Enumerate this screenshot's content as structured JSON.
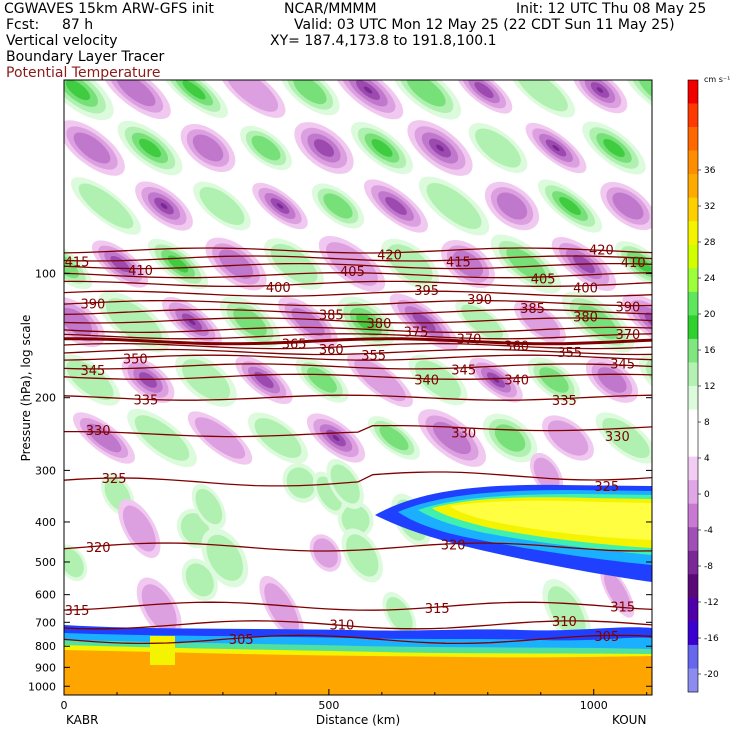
{
  "header": {
    "model": "CGWAVES 15km ARW-GFS init",
    "forecast_label": "Fcst:",
    "forecast_hours": "87 h",
    "org": "NCAR/MMMM",
    "init": "Init: 12 UTC Thu 08 May 25",
    "valid": "Valid: 03 UTC Mon 12 May 25 (22 CDT Sun 11 May 25)",
    "xy": "XY= 187.4,173.8 to 191.8,100.1",
    "field1": "Vertical velocity",
    "field2": "Boundary Layer Tracer",
    "field3": "Potential Temperature",
    "field3_color": "#8b1a1a"
  },
  "chart_data": {
    "type": "heatmap",
    "ylabel": "Pressure (hPa), log scale",
    "xlabel": "Distance (km)",
    "x_left_label": "KABR",
    "x_right_label": "KOUN",
    "xlim": [
      0,
      1110
    ],
    "ylim": [
      1050,
      34
    ],
    "yscale": "log",
    "x_ticks": [
      "0",
      "500",
      "1000"
    ],
    "x_tick_values": [
      0,
      500,
      1000
    ],
    "y_ticks": [
      "100",
      "200",
      "300",
      "400",
      "500",
      "600",
      "700",
      "800",
      "900",
      "1000"
    ],
    "y_tick_values": [
      100,
      200,
      300,
      400,
      500,
      600,
      700,
      800,
      900,
      1000
    ],
    "colorbar": {
      "units": "cm s⁻¹",
      "tick_labels": [
        "36",
        "32",
        "28",
        "24",
        "20",
        "16",
        "12",
        "8",
        "4",
        "0",
        "-4",
        "-8",
        "-12",
        "-16",
        "-20"
      ],
      "colors": [
        "#f20000",
        "#ff3a00",
        "#ff6800",
        "#ff8d00",
        "#ffaa00",
        "#ffd000",
        "#f4f400",
        "#d2ff00",
        "#9cff3a",
        "#5fe65f",
        "#2ed12e",
        "#80e680",
        "#b4f2b4",
        "#dcfadc",
        "#ffffff",
        "#ffffff",
        "#f2ccf2",
        "#e0a6e6",
        "#c87ad2",
        "#a050b4",
        "#7a2896",
        "#5a0a78",
        "#5000aa",
        "#3a00d2",
        "#6666ee",
        "#8c8cf0"
      ]
    },
    "theta_series": {
      "color": "#800000",
      "contours": [
        {
          "label": "305",
          "p": 770,
          "label_x_km": [
            310,
            1000
          ]
        },
        {
          "label": "310",
          "p": 710,
          "label_x_km": [
            500,
            920
          ]
        },
        {
          "label": "315",
          "p": 640,
          "label_x_km": [
            0,
            680,
            1030
          ]
        },
        {
          "label": "320",
          "p": 460,
          "label_x_km": [
            40,
            710
          ]
        },
        {
          "label": "325",
          "p": 320,
          "label_x_km": [
            70,
            1000
          ]
        },
        {
          "label": "330",
          "p": 245,
          "label_x_km": [
            40,
            730,
            1020
          ]
        },
        {
          "label": "335",
          "p": 200,
          "label_x_km": [
            130,
            920
          ]
        },
        {
          "label": "340",
          "p": 178,
          "label_x_km": [
            660,
            830
          ]
        },
        {
          "label": "345",
          "p": 168,
          "label_x_km": [
            30,
            730,
            1030
          ]
        },
        {
          "label": "350",
          "p": 160,
          "label_x_km": [
            110
          ]
        },
        {
          "label": "355",
          "p": 155,
          "label_x_km": [
            560,
            930
          ]
        },
        {
          "label": "360",
          "p": 150,
          "label_x_km": [
            480,
            830
          ]
        },
        {
          "label": "365",
          "p": 146,
          "label_x_km": [
            410
          ]
        },
        {
          "label": "370",
          "p": 142,
          "label_x_km": [
            740,
            1040
          ]
        },
        {
          "label": "375",
          "p": 137,
          "label_x_km": [
            640
          ]
        },
        {
          "label": "380",
          "p": 130,
          "label_x_km": [
            570,
            960
          ]
        },
        {
          "label": "385",
          "p": 124,
          "label_x_km": [
            480,
            860
          ]
        },
        {
          "label": "390",
          "p": 118,
          "label_x_km": [
            30,
            760,
            1040
          ]
        },
        {
          "label": "395",
          "p": 112,
          "label_x_km": [
            660
          ]
        },
        {
          "label": "400",
          "p": 106,
          "label_x_km": [
            380,
            960
          ]
        },
        {
          "label": "405",
          "p": 101,
          "label_x_km": [
            520,
            880
          ]
        },
        {
          "label": "410",
          "p": 96,
          "label_x_km": [
            120,
            1050
          ]
        },
        {
          "label": "415",
          "p": 92,
          "label_x_km": [
            0,
            720
          ]
        },
        {
          "label": "420",
          "p": 88,
          "label_x_km": [
            590,
            990
          ]
        }
      ]
    }
  }
}
